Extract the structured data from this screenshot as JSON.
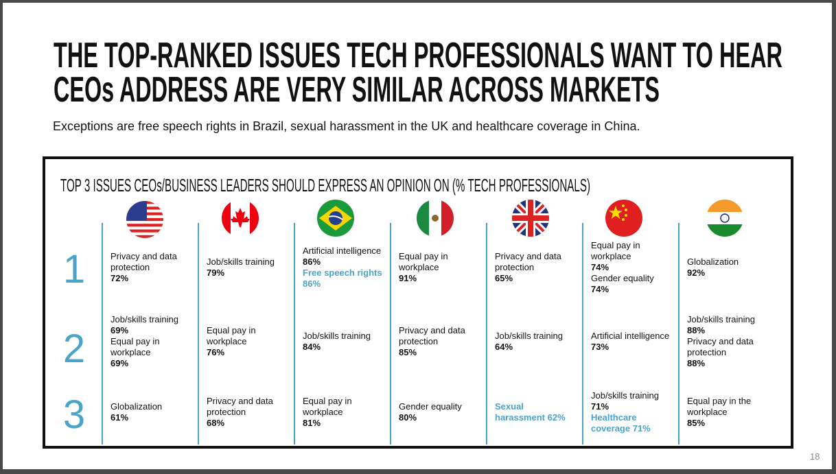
{
  "header": {
    "title_lines": [
      "THE TOP-RANKED ISSUES TECH PROFESSIONALS WANT TO HEAR",
      "CEOs ADDRESS ARE VERY SIMILAR ACROSS MARKETS"
    ],
    "subtitle": "Exceptions are free speech rights in Brazil, sexual harassment in the UK and healthcare coverage in China."
  },
  "table": {
    "title": "TOP 3 ISSUES CEOs/BUSINESS LEADERS SHOULD EXPRESS AN OPINION ON (% TECH PROFESSIONALS)",
    "row_numbers": [
      "1",
      "2",
      "3"
    ],
    "columns": [
      [
        [
          {
            "text": "Privacy and data protection",
            "value": "72%"
          }
        ],
        [
          {
            "text": "Job/skills training",
            "value": "69%"
          },
          {
            "text": "Equal pay in workplace",
            "value": "69%"
          }
        ],
        [
          {
            "text": "Globalization",
            "value": "61%"
          }
        ]
      ],
      [
        [
          {
            "text": "Job/skills training",
            "value": "79%"
          }
        ],
        [
          {
            "text": "Equal pay in workplace",
            "value": "76%"
          }
        ],
        [
          {
            "text": "Privacy and data protection",
            "value": "68%"
          }
        ]
      ],
      [
        [
          {
            "text": "Artificial intelligence",
            "value": "86%"
          },
          {
            "text": "Free speech rights",
            "value": "86%",
            "highlight": true
          }
        ],
        [
          {
            "text": "Job/skills training",
            "value": "84%"
          }
        ],
        [
          {
            "text": "Equal pay in workplace",
            "value": "81%"
          }
        ]
      ],
      [
        [
          {
            "text": "Equal pay in workplace",
            "value": "91%"
          }
        ],
        [
          {
            "text": "Privacy and data protection",
            "value": "85%"
          }
        ],
        [
          {
            "text": "Gender equality",
            "value": "80%"
          }
        ]
      ],
      [
        [
          {
            "text": "Privacy and data protection",
            "value": "65%"
          }
        ],
        [
          {
            "text": "Job/skills training",
            "value": "64%"
          }
        ],
        [
          {
            "text": "Sexual harassment",
            "value": "62%",
            "highlight": true
          }
        ]
      ],
      [
        [
          {
            "text": "Equal pay in workplace",
            "value": "74%"
          },
          {
            "text": "Gender equality",
            "value": "74%"
          }
        ],
        [
          {
            "text": "Artificial intelligence",
            "value": "73%"
          }
        ],
        [
          {
            "text": "Job/skills training",
            "value": "71%"
          },
          {
            "text": "Healthcare coverage",
            "value": "71%",
            "highlight": true
          }
        ]
      ],
      [
        [
          {
            "text": "Globalization",
            "value": "92%"
          }
        ],
        [
          {
            "text": "Job/skills training",
            "value": "88%"
          },
          {
            "text": "Privacy and data protection",
            "value": "88%"
          }
        ],
        [
          {
            "text": "Equal pay in the workplace",
            "value": "85%"
          }
        ]
      ]
    ]
  },
  "footer": {
    "page_number": "18"
  }
}
